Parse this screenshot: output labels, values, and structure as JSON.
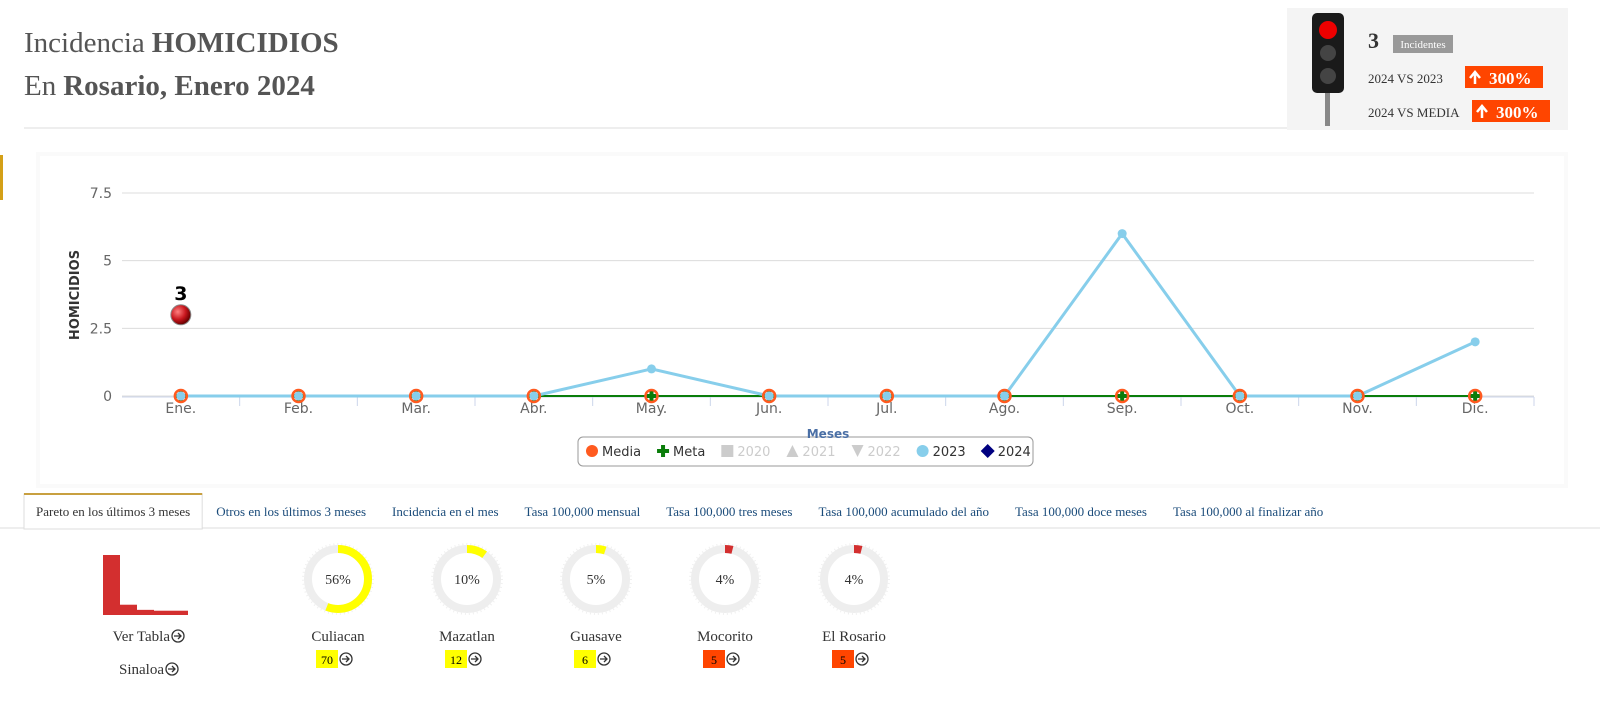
{
  "header": {
    "title_a": "Incidencia",
    "title_b": "HOMICIDIOS",
    "subtitle_a": "En",
    "subtitle_b": "Rosario, Enero 2024"
  },
  "semaforo": {
    "count": 3,
    "count_label": "Incidentes",
    "rows": [
      {
        "label": "2024 VS 2023",
        "value": "300%"
      },
      {
        "label": "2024 VS MEDIA",
        "value": "300%"
      }
    ]
  },
  "chart_data": {
    "type": "line",
    "y_label": "HOMICIDIOS",
    "x_label": "Meses",
    "categories": [
      "Ene.",
      "Feb.",
      "Mar.",
      "Abr.",
      "May.",
      "Jun.",
      "Jul.",
      "Ago.",
      "Sep.",
      "Oct.",
      "Nov.",
      "Dic."
    ],
    "ylim": [
      0,
      7.5
    ],
    "yticks": [
      0,
      2.5,
      5,
      7.5
    ],
    "grid": true,
    "series": [
      {
        "name": "Media",
        "color": "#ff5a1f",
        "marker": "circle",
        "values": [
          0,
          0,
          0,
          0,
          0,
          0,
          0,
          0,
          0,
          0,
          0,
          0
        ]
      },
      {
        "name": "Meta",
        "color": "#0a7d0a",
        "marker": "cross",
        "values": [
          0,
          0,
          0,
          0,
          0,
          0,
          0,
          0,
          0,
          0,
          0,
          0
        ]
      },
      {
        "name": "2020",
        "color": "#cccccc",
        "marker": "square",
        "hidden": true
      },
      {
        "name": "2021",
        "color": "#cccccc",
        "marker": "triangle",
        "hidden": true
      },
      {
        "name": "2022",
        "color": "#cccccc",
        "marker": "triangle-down",
        "hidden": true
      },
      {
        "name": "2023",
        "color": "#87ceeb",
        "marker": "circle",
        "values": [
          0,
          0,
          0,
          0,
          1,
          0,
          0,
          0,
          6,
          0,
          0,
          2
        ]
      },
      {
        "name": "2024",
        "color": "#000080",
        "marker": "diamond",
        "point_color": "#c8161d",
        "data_labels": true,
        "values": [
          3,
          null,
          null,
          null,
          null,
          null,
          null,
          null,
          null,
          null,
          null,
          null
        ]
      }
    ]
  },
  "tabs": {
    "active": 0,
    "items": [
      "Pareto en los últimos 3 meses",
      "Otros en los últimos 3 meses",
      "Incidencia en el mes",
      "Tasa 100,000 mensual",
      "Tasa 100,000 tres meses",
      "Tasa 100,000 acumulado del año",
      "Tasa 100,000 doce meses",
      "Tasa 100,000 al finalizar año"
    ]
  },
  "pareto": {
    "table_link": "Ver Tabla",
    "region_link": "Sinaloa",
    "items": [
      {
        "name": "Culiacan",
        "percent": 56,
        "percent_label": "56%",
        "count": 70,
        "color": "#ffff00",
        "badge_color": "#ffff00"
      },
      {
        "name": "Mazatlan",
        "percent": 10,
        "percent_label": "10%",
        "count": 12,
        "color": "#ffff00",
        "badge_color": "#ffff00"
      },
      {
        "name": "Guasave",
        "percent": 5,
        "percent_label": "5%",
        "count": 6,
        "color": "#ffff00",
        "badge_color": "#ffff00"
      },
      {
        "name": "Mocorito",
        "percent": 4,
        "percent_label": "4%",
        "count": 5,
        "color": "#d32f2f",
        "badge_color": "#ff4500"
      },
      {
        "name": "El Rosario",
        "percent": 4,
        "percent_label": "4%",
        "count": 5,
        "color": "#d32f2f",
        "badge_color": "#ff4500"
      }
    ]
  }
}
